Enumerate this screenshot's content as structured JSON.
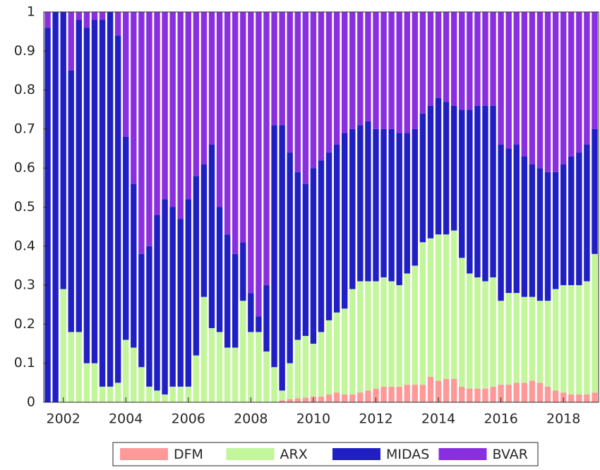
{
  "chart_data": {
    "type": "stacked_bar",
    "x": [
      2001.5,
      2001.75,
      2002,
      2002.25,
      2002.5,
      2002.75,
      2003,
      2003.25,
      2003.5,
      2003.75,
      2004,
      2004.25,
      2004.5,
      2004.75,
      2005,
      2005.25,
      2005.5,
      2005.75,
      2006,
      2006.25,
      2006.5,
      2006.75,
      2007,
      2007.25,
      2007.5,
      2007.75,
      2008,
      2008.25,
      2008.5,
      2008.75,
      2009,
      2009.25,
      2009.5,
      2009.75,
      2010,
      2010.25,
      2010.5,
      2010.75,
      2011,
      2011.25,
      2011.5,
      2011.75,
      2012,
      2012.25,
      2012.5,
      2012.75,
      2013,
      2013.25,
      2013.5,
      2013.75,
      2014,
      2014.25,
      2014.5,
      2014.75,
      2015,
      2015.25,
      2015.5,
      2015.75,
      2016,
      2016.25,
      2016.5,
      2016.75,
      2017,
      2017.25,
      2017.5,
      2017.75,
      2018,
      2018.25,
      2018.5,
      2018.75,
      2019
    ],
    "series": [
      {
        "name": "DFM",
        "color": "#ff9999",
        "values": [
          0,
          0,
          0,
          0,
          0,
          0,
          0,
          0,
          0,
          0,
          0,
          0,
          0,
          0,
          0,
          0,
          0,
          0,
          0,
          0,
          0,
          0,
          0,
          0,
          0,
          0,
          0,
          0,
          0,
          0,
          0.005,
          0.008,
          0.01,
          0.012,
          0.015,
          0.015,
          0.02,
          0.025,
          0.02,
          0.02,
          0.025,
          0.03,
          0.035,
          0.04,
          0.04,
          0.04,
          0.045,
          0.045,
          0.045,
          0.065,
          0.055,
          0.06,
          0.06,
          0.04,
          0.035,
          0.035,
          0.035,
          0.04,
          0.045,
          0.045,
          0.05,
          0.05,
          0.055,
          0.05,
          0.04,
          0.03,
          0.025,
          0.02,
          0.02,
          0.02,
          0.025
        ]
      },
      {
        "name": "ARX",
        "color": "#c3f59b",
        "values": [
          0,
          0,
          0.29,
          0.18,
          0.18,
          0.1,
          0.1,
          0.04,
          0.04,
          0.05,
          0.16,
          0.14,
          0.09,
          0.04,
          0.03,
          0.02,
          0.04,
          0.04,
          0.04,
          0.12,
          0.27,
          0.19,
          0.18,
          0.14,
          0.14,
          0.26,
          0.18,
          0.18,
          0.13,
          0.09,
          0.025,
          0.092,
          0.15,
          0.158,
          0.135,
          0.165,
          0.19,
          0.205,
          0.22,
          0.27,
          0.285,
          0.28,
          0.275,
          0.28,
          0.27,
          0.26,
          0.285,
          0.305,
          0.365,
          0.355,
          0.375,
          0.37,
          0.38,
          0.33,
          0.295,
          0.285,
          0.275,
          0.28,
          0.215,
          0.235,
          0.23,
          0.22,
          0.215,
          0.21,
          0.22,
          0.26,
          0.275,
          0.28,
          0.28,
          0.29,
          0.355
        ]
      },
      {
        "name": "MIDAS",
        "color": "#1f1fc4",
        "values": [
          0.96,
          1,
          0.71,
          0.67,
          0.8,
          0.86,
          0.88,
          0.94,
          0.96,
          0.89,
          0.52,
          0.42,
          0.29,
          0.36,
          0.45,
          0.5,
          0.46,
          0.43,
          0.48,
          0.46,
          0.34,
          0.47,
          0.32,
          0.29,
          0.24,
          0.15,
          0.1,
          0.04,
          0.17,
          0.62,
          0.68,
          0.54,
          0.43,
          0.39,
          0.45,
          0.44,
          0.43,
          0.43,
          0.45,
          0.41,
          0.4,
          0.41,
          0.39,
          0.38,
          0.39,
          0.39,
          0.36,
          0.35,
          0.33,
          0.34,
          0.35,
          0.34,
          0.32,
          0.38,
          0.42,
          0.44,
          0.45,
          0.44,
          0.4,
          0.37,
          0.38,
          0.36,
          0.34,
          0.34,
          0.33,
          0.3,
          0.31,
          0.33,
          0.34,
          0.35,
          0.32
        ]
      },
      {
        "name": "BVAR",
        "color": "#8a2fe0",
        "values": [
          0.04,
          0,
          0,
          0.15,
          0.02,
          0.04,
          0.02,
          0.02,
          0,
          0.06,
          0.32,
          0.44,
          0.62,
          0.6,
          0.52,
          0.48,
          0.5,
          0.53,
          0.48,
          0.42,
          0.39,
          0.34,
          0.5,
          0.57,
          0.62,
          0.59,
          0.72,
          0.78,
          0.7,
          0.29,
          0.29,
          0.36,
          0.41,
          0.44,
          0.4,
          0.38,
          0.36,
          0.34,
          0.31,
          0.3,
          0.29,
          0.28,
          0.3,
          0.3,
          0.3,
          0.31,
          0.31,
          0.3,
          0.26,
          0.24,
          0.22,
          0.23,
          0.24,
          0.25,
          0.25,
          0.24,
          0.24,
          0.24,
          0.34,
          0.35,
          0.34,
          0.37,
          0.39,
          0.4,
          0.41,
          0.41,
          0.39,
          0.37,
          0.36,
          0.34,
          0.3
        ]
      }
    ],
    "xlim": [
      2001.375,
      2019.125
    ],
    "xticks": [
      2002,
      2004,
      2006,
      2008,
      2010,
      2012,
      2014,
      2016,
      2018
    ],
    "ylim": [
      0,
      1
    ],
    "yticks": [
      0,
      0.1,
      0.2,
      0.3,
      0.4,
      0.5,
      0.6,
      0.7,
      0.8,
      0.9,
      1
    ],
    "legend": "bottom"
  }
}
